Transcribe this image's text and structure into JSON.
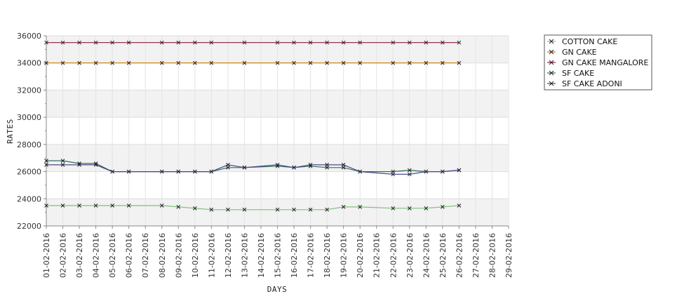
{
  "chart_data": {
    "type": "line",
    "title": "",
    "xlabel": "DAYS",
    "ylabel": "RATES",
    "ylim": [
      22000,
      36000
    ],
    "yticks": [
      "22000",
      "24000",
      "26000",
      "28000",
      "30000",
      "32000",
      "34000",
      "36000"
    ],
    "categories": [
      "01-02-2016",
      "02-02-2016",
      "03-02-2016",
      "04-02-2016",
      "05-02-2016",
      "06-02-2016",
      "07-02-2016",
      "08-02-2016",
      "09-02-2016",
      "10-02-2016",
      "11-02-2016",
      "12-02-2016",
      "13-02-2016",
      "14-02-2016",
      "15-02-2016",
      "16-02-2016",
      "17-02-2016",
      "18-02-2016",
      "19-02-2016",
      "20-02-2016",
      "21-02-2016",
      "22-02-2016",
      "23-02-2016",
      "24-02-2016",
      "25-02-2016",
      "26-02-2016",
      "27-02-2016",
      "28-02-2016",
      "29-02-2016"
    ],
    "grid": true,
    "legend_position": "top-right",
    "series": [
      {
        "name": "COTTON CAKE",
        "color": "#7fbf7f",
        "values": [
          23500,
          23500,
          23500,
          23500,
          23500,
          23500,
          null,
          23500,
          23400,
          23300,
          23200,
          23200,
          23200,
          null,
          23200,
          23200,
          23200,
          23200,
          23400,
          23400,
          null,
          23300,
          23300,
          23300,
          23400,
          23500,
          null,
          null,
          null
        ]
      },
      {
        "name": "GN CAKE",
        "color": "#cc7a00",
        "values": [
          34000,
          34000,
          34000,
          34000,
          34000,
          34000,
          null,
          34000,
          34000,
          34000,
          34000,
          null,
          34000,
          null,
          34000,
          34000,
          34000,
          34000,
          34000,
          34000,
          null,
          34000,
          34000,
          34000,
          34000,
          34000,
          null,
          null,
          null
        ]
      },
      {
        "name": "GN CAKE MANGALORE",
        "color": "#8b1a4a",
        "values": [
          35500,
          35500,
          35500,
          35500,
          35500,
          35500,
          null,
          35500,
          35500,
          35500,
          35500,
          null,
          35500,
          null,
          35500,
          35500,
          35500,
          35500,
          35500,
          35500,
          null,
          35500,
          35500,
          35500,
          35500,
          35500,
          null,
          null,
          null
        ]
      },
      {
        "name": "SF CAKE",
        "color": "#2e6b5e",
        "values": [
          26800,
          26800,
          26600,
          26600,
          26000,
          26000,
          null,
          26000,
          26000,
          26000,
          26000,
          26300,
          26300,
          null,
          26400,
          26300,
          26400,
          26300,
          26300,
          26000,
          null,
          26000,
          26100,
          26000,
          26000,
          26100,
          null,
          null,
          null
        ]
      },
      {
        "name": "SF CAKE ADONI",
        "color": "#4a4a8a",
        "values": [
          26500,
          26500,
          26500,
          26500,
          26000,
          26000,
          null,
          26000,
          26000,
          26000,
          26000,
          26500,
          26300,
          null,
          26500,
          26300,
          26500,
          26500,
          26500,
          26000,
          null,
          25800,
          25800,
          26000,
          26000,
          26100,
          null,
          null,
          null
        ]
      }
    ]
  }
}
